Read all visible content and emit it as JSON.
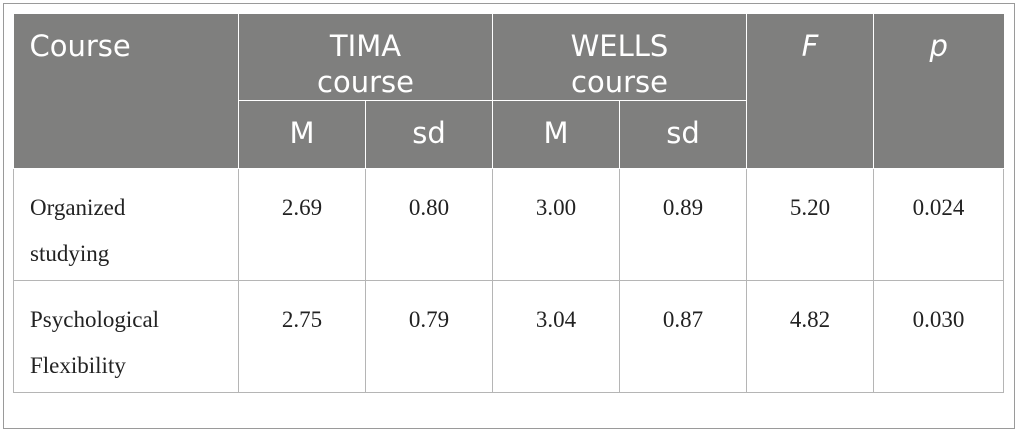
{
  "table": {
    "header": {
      "course": "Course",
      "groups": [
        "TIMA course",
        "WELLS course"
      ],
      "f": "F",
      "p": "p",
      "sub": [
        "M",
        "sd",
        "M",
        "sd"
      ]
    },
    "rows": [
      [
        "Organized studying",
        "2.69",
        "0.80",
        "3.00",
        "0.89",
        "5.20",
        "0.024"
      ],
      [
        "Psychological Flexibility",
        "2.75",
        "0.79",
        "3.04",
        "0.87",
        "4.82",
        "0.030"
      ]
    ]
  }
}
